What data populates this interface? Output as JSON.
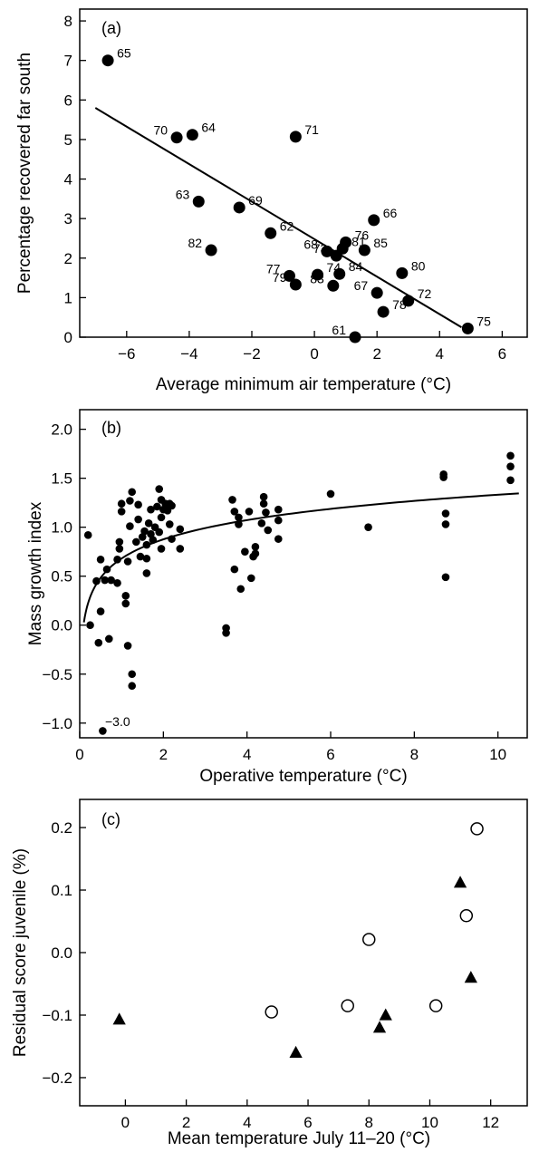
{
  "chart_data": [
    {
      "type": "scatter",
      "panel_label": "(a)",
      "xlabel": "Average minimum air temperature (°C)",
      "ylabel": "Percentage recovered far south",
      "xlim": [
        -7.5,
        6.8
      ],
      "ylim": [
        0,
        8.3
      ],
      "xticks": [
        -6,
        -4,
        -2,
        0,
        2,
        4,
        6
      ],
      "yticks": [
        0,
        1,
        2,
        3,
        4,
        5,
        6,
        7,
        8
      ],
      "marker": "filled-circle",
      "points": [
        {
          "x": -6.6,
          "y": 7.0,
          "label": "65"
        },
        {
          "x": -4.4,
          "y": 5.05,
          "label": "70"
        },
        {
          "x": -3.9,
          "y": 5.12,
          "label": "64"
        },
        {
          "x": -0.6,
          "y": 5.07,
          "label": "71"
        },
        {
          "x": -3.7,
          "y": 3.43,
          "label": "63"
        },
        {
          "x": -2.4,
          "y": 3.28,
          "label": "69"
        },
        {
          "x": -3.3,
          "y": 2.2,
          "label": "82"
        },
        {
          "x": -1.4,
          "y": 2.63,
          "label": "62"
        },
        {
          "x": 1.9,
          "y": 2.96,
          "label": "66"
        },
        {
          "x": 1.6,
          "y": 2.2,
          "label": "85"
        },
        {
          "x": 1.0,
          "y": 2.4,
          "label": "76"
        },
        {
          "x": 0.4,
          "y": 2.17,
          "label": "68"
        },
        {
          "x": 0.9,
          "y": 2.24,
          "label": "81"
        },
        {
          "x": 0.7,
          "y": 2.06,
          "label": "73"
        },
        {
          "x": 2.8,
          "y": 1.62,
          "label": "80"
        },
        {
          "x": -0.8,
          "y": 1.55,
          "label": "77"
        },
        {
          "x": 0.1,
          "y": 1.58,
          "label": "74"
        },
        {
          "x": 0.8,
          "y": 1.6,
          "label": "84"
        },
        {
          "x": -0.6,
          "y": 1.33,
          "label": "79"
        },
        {
          "x": 0.6,
          "y": 1.3,
          "label": "83"
        },
        {
          "x": 2.0,
          "y": 1.12,
          "label": "67"
        },
        {
          "x": 3.0,
          "y": 0.92,
          "label": "72"
        },
        {
          "x": 2.2,
          "y": 0.64,
          "label": "78"
        },
        {
          "x": 4.9,
          "y": 0.22,
          "label": "75"
        },
        {
          "x": 1.3,
          "y": 0.0,
          "label": "61"
        }
      ],
      "trend_line": {
        "x": [
          -7.0,
          4.7
        ],
        "y": [
          5.8,
          0.25
        ]
      }
    },
    {
      "type": "scatter",
      "panel_label": "(b)",
      "xlabel": "Operative temperature (°C)",
      "ylabel": "Mass growth index",
      "xlim": [
        0,
        10.7
      ],
      "ylim": [
        -1.15,
        2.2
      ],
      "xticks": [
        0,
        2,
        4,
        6,
        8,
        10
      ],
      "yticks": [
        -1.0,
        -0.5,
        0.0,
        0.5,
        1.0,
        1.5,
        2.0
      ],
      "marker": "small-filled-circle",
      "outlier_annotation": {
        "x": 0.55,
        "y": -1.08,
        "text": "−3.0"
      },
      "points": [
        [
          0.2,
          0.92
        ],
        [
          0.25,
          0.0
        ],
        [
          0.4,
          0.45
        ],
        [
          0.45,
          -0.18
        ],
        [
          0.5,
          0.67
        ],
        [
          0.5,
          0.14
        ],
        [
          0.6,
          0.46
        ],
        [
          0.65,
          0.57
        ],
        [
          0.7,
          -0.14
        ],
        [
          0.75,
          0.46
        ],
        [
          0.9,
          0.43
        ],
        [
          0.9,
          0.67
        ],
        [
          0.95,
          0.78
        ],
        [
          0.95,
          0.85
        ],
        [
          1.0,
          1.16
        ],
        [
          1.0,
          1.24
        ],
        [
          1.1,
          0.3
        ],
        [
          1.1,
          0.22
        ],
        [
          1.15,
          0.65
        ],
        [
          1.15,
          -0.21
        ],
        [
          1.2,
          1.01
        ],
        [
          1.2,
          1.27
        ],
        [
          1.25,
          1.36
        ],
        [
          1.25,
          -0.5
        ],
        [
          1.25,
          -0.62
        ],
        [
          1.35,
          0.85
        ],
        [
          1.4,
          1.08
        ],
        [
          1.4,
          1.23
        ],
        [
          1.45,
          0.7
        ],
        [
          1.5,
          0.9
        ],
        [
          1.55,
          0.96
        ],
        [
          1.6,
          0.68
        ],
        [
          1.6,
          0.53
        ],
        [
          1.6,
          0.82
        ],
        [
          1.65,
          1.04
        ],
        [
          1.7,
          1.18
        ],
        [
          1.7,
          0.93
        ],
        [
          1.75,
          0.87
        ],
        [
          1.8,
          1.0
        ],
        [
          1.85,
          1.21
        ],
        [
          1.9,
          1.39
        ],
        [
          1.95,
          1.28
        ],
        [
          1.9,
          0.95
        ],
        [
          1.95,
          0.78
        ],
        [
          1.95,
          1.1
        ],
        [
          2.0,
          1.18
        ],
        [
          2.05,
          1.24
        ],
        [
          2.1,
          1.17
        ],
        [
          2.15,
          1.24
        ],
        [
          2.2,
          1.22
        ],
        [
          2.15,
          1.03
        ],
        [
          2.2,
          0.88
        ],
        [
          2.4,
          0.98
        ],
        [
          2.4,
          0.78
        ],
        [
          3.5,
          -0.03
        ],
        [
          3.5,
          -0.08
        ],
        [
          3.65,
          1.28
        ],
        [
          3.7,
          1.16
        ],
        [
          3.7,
          0.57
        ],
        [
          3.8,
          1.03
        ],
        [
          3.8,
          1.1
        ],
        [
          3.85,
          0.37
        ],
        [
          3.95,
          0.75
        ],
        [
          4.05,
          1.16
        ],
        [
          4.1,
          0.48
        ],
        [
          4.15,
          0.7
        ],
        [
          4.2,
          0.73
        ],
        [
          4.2,
          0.8
        ],
        [
          4.35,
          1.04
        ],
        [
          4.4,
          1.31
        ],
        [
          4.4,
          1.24
        ],
        [
          4.45,
          1.15
        ],
        [
          4.5,
          0.97
        ],
        [
          4.75,
          1.18
        ],
        [
          4.75,
          1.07
        ],
        [
          4.75,
          0.88
        ],
        [
          6.0,
          1.34
        ],
        [
          6.9,
          1.0
        ],
        [
          8.7,
          1.51
        ],
        [
          8.7,
          1.54
        ],
        [
          8.75,
          1.14
        ],
        [
          8.75,
          1.03
        ],
        [
          8.75,
          0.49
        ],
        [
          10.3,
          1.73
        ],
        [
          10.3,
          1.62
        ],
        [
          10.3,
          1.48
        ]
      ],
      "fit_curve": {
        "form": "log",
        "x_range": [
          0.1,
          10.5
        ]
      }
    },
    {
      "type": "scatter",
      "panel_label": "(c)",
      "xlabel": "Mean temperature July 11–20 (°C)",
      "ylabel": "Residual score juvenile (%)",
      "xlim": [
        -1.5,
        13.2
      ],
      "ylim": [
        -0.245,
        0.245
      ],
      "xticks": [
        0,
        2,
        4,
        6,
        8,
        10,
        12
      ],
      "yticks": [
        -0.2,
        -0.1,
        0.0,
        0.1,
        0.2
      ],
      "series": [
        {
          "marker": "filled-triangle",
          "points": [
            [
              -0.2,
              -0.107
            ],
            [
              5.6,
              -0.16
            ],
            [
              8.35,
              -0.12
            ],
            [
              8.55,
              -0.1
            ],
            [
              11.0,
              0.112
            ],
            [
              11.35,
              -0.04
            ]
          ]
        },
        {
          "marker": "open-circle",
          "points": [
            [
              4.8,
              -0.095
            ],
            [
              7.3,
              -0.085
            ],
            [
              8.0,
              0.021
            ],
            [
              10.2,
              -0.085
            ],
            [
              11.2,
              0.059
            ],
            [
              11.55,
              0.198
            ]
          ]
        }
      ]
    }
  ]
}
